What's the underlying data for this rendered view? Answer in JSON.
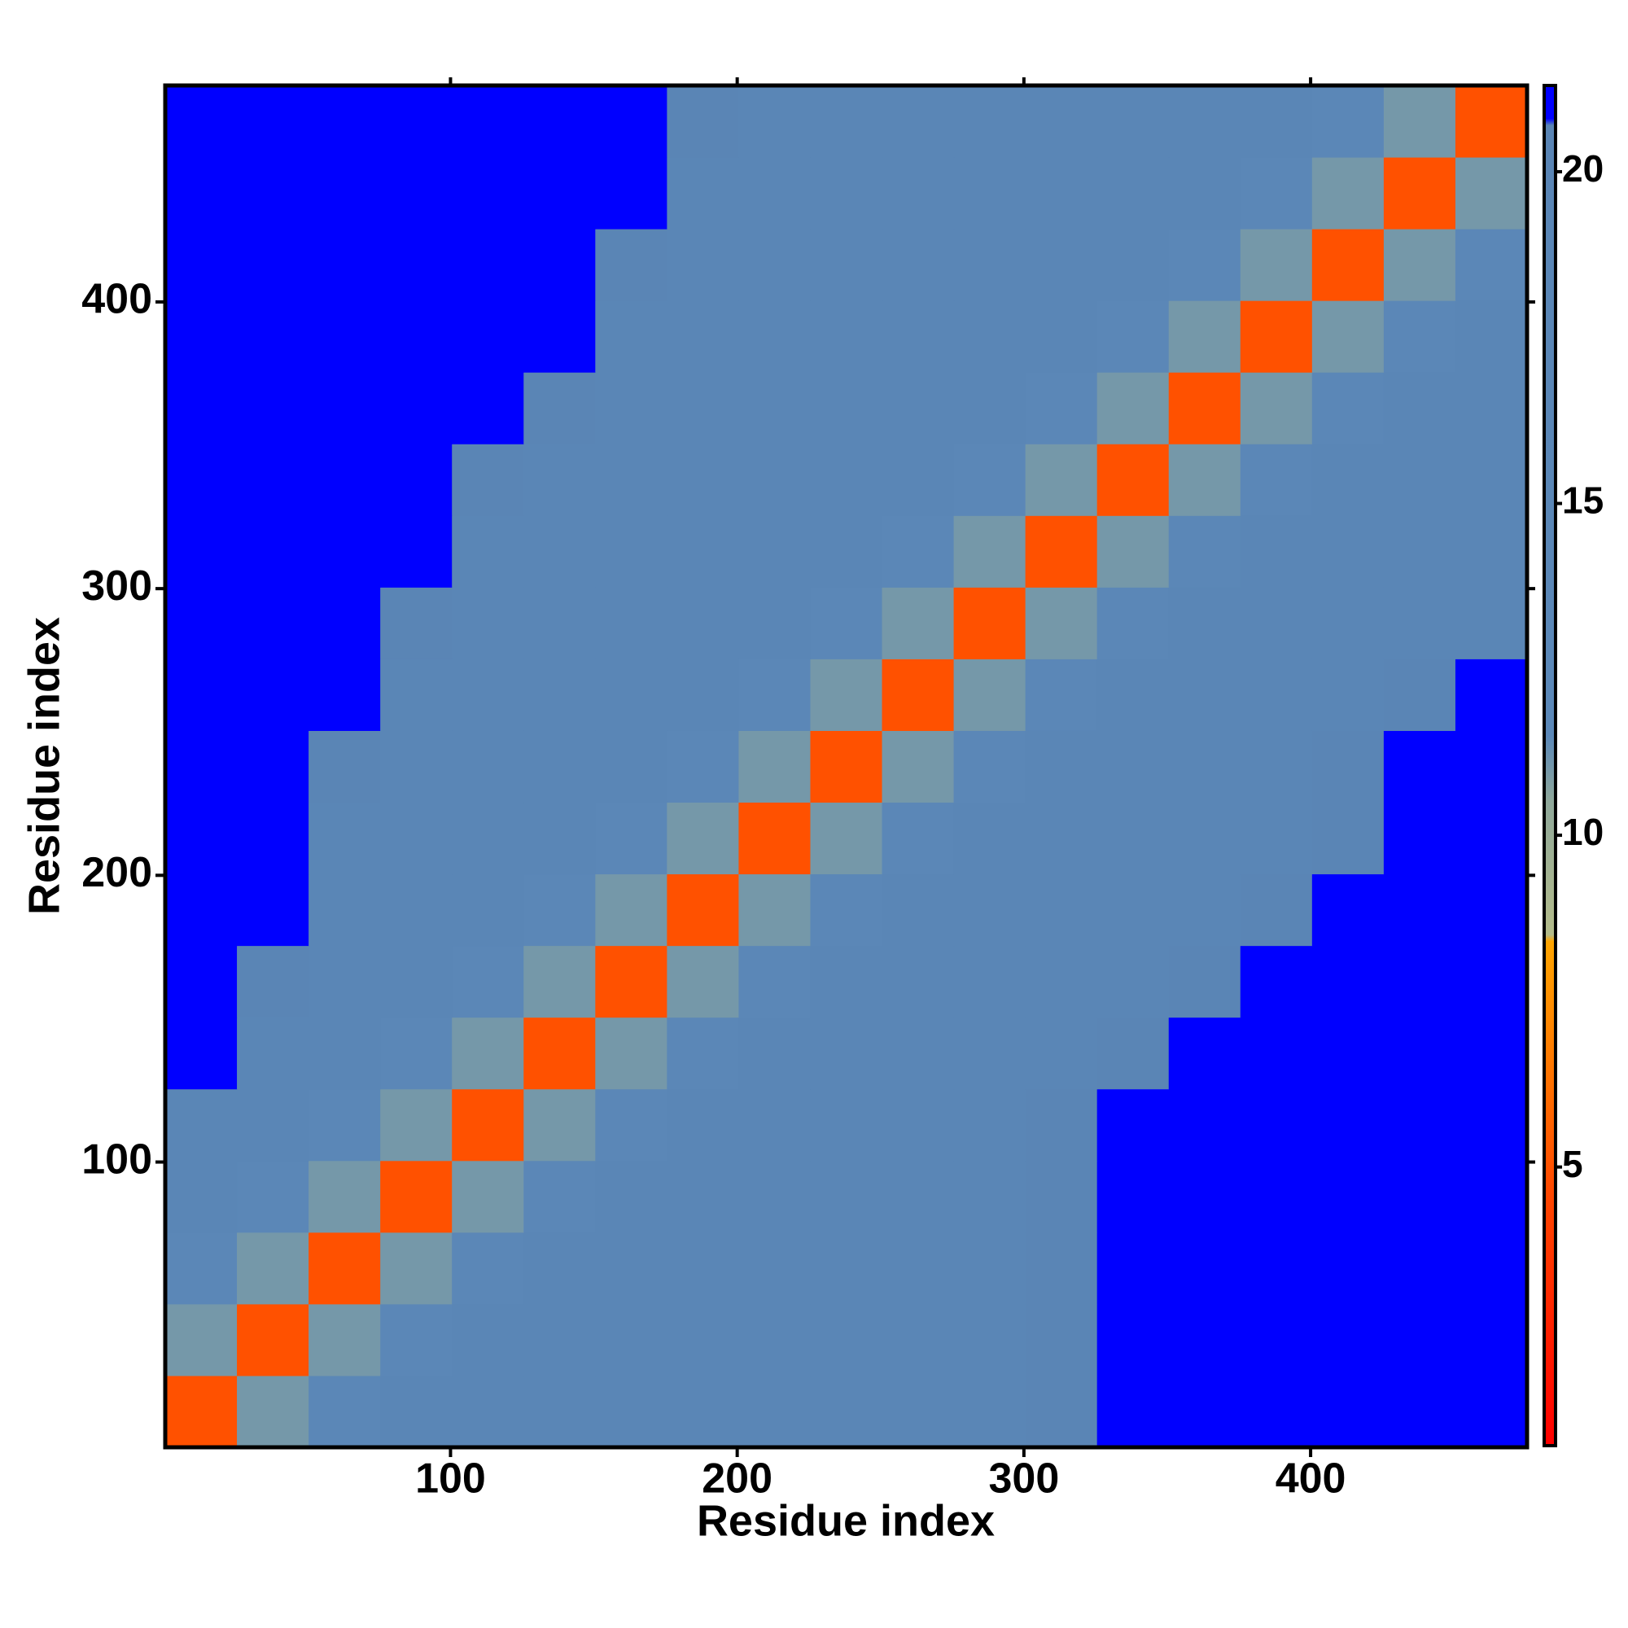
{
  "chart_data": {
    "type": "heatmap",
    "xlabel": "Residue index",
    "ylabel": "Residue index",
    "xlim": [
      0.5,
      475.5
    ],
    "ylim": [
      0.5,
      475.5
    ],
    "xticks": [
      100,
      200,
      300,
      400
    ],
    "yticks": [
      100,
      200,
      300,
      400
    ],
    "xbins": [
      0.5,
      25.5,
      50.5,
      75.5,
      100.5,
      125.5,
      150.5,
      175.5,
      200.5,
      225.5,
      250.5,
      275.5,
      300.5,
      325.5,
      350.5,
      375.5,
      400.5,
      425.5,
      450.5,
      475.5
    ],
    "ybins": [
      0.5,
      25.5,
      50.5,
      75.5,
      100.5,
      125.5,
      150.5,
      175.5,
      200.5,
      225.5,
      250.5,
      275.5,
      300.5,
      325.5,
      350.5,
      375.5,
      400.5,
      425.5,
      450.5,
      475.5
    ],
    "z": [
      [
        5,
        11,
        15,
        17,
        17,
        18,
        18,
        18,
        18,
        18,
        18,
        18,
        19.5,
        21,
        21,
        21,
        21,
        21,
        21
      ],
      [
        11,
        5,
        11,
        15,
        17,
        17,
        18,
        18,
        18,
        18,
        18,
        18,
        19.5,
        21,
        21,
        21,
        21,
        21,
        21
      ],
      [
        15,
        11,
        5,
        11,
        15,
        17,
        17,
        18,
        18,
        18,
        18,
        18,
        19.5,
        21,
        21,
        21,
        21,
        21,
        21
      ],
      [
        17,
        15,
        11,
        5,
        11,
        15,
        17,
        17,
        18,
        18,
        18,
        18,
        19.5,
        21,
        21,
        21,
        21,
        21,
        21
      ],
      [
        17,
        17,
        15,
        11,
        5,
        11,
        15,
        17,
        17,
        18,
        18,
        18,
        19.5,
        21,
        21,
        21,
        21,
        21,
        21
      ],
      [
        21,
        17,
        17,
        15,
        11,
        5,
        11,
        15,
        17,
        17,
        18,
        18,
        18,
        19.5,
        21,
        21,
        21,
        21,
        21
      ],
      [
        21,
        19.5,
        17,
        17,
        15,
        11,
        5,
        11,
        15,
        17,
        17,
        18,
        18,
        18,
        19.5,
        21,
        21,
        21,
        21
      ],
      [
        21,
        21,
        18,
        17,
        17,
        15,
        11,
        5,
        11,
        15,
        17,
        17,
        18,
        18,
        18,
        19.5,
        21,
        21,
        21
      ],
      [
        21,
        21,
        18,
        18,
        17,
        17,
        15,
        11,
        5,
        11,
        15,
        17,
        17,
        18,
        18,
        18,
        19.5,
        21,
        21
      ],
      [
        21,
        21,
        19.5,
        18,
        18,
        17,
        17,
        15,
        11,
        5,
        11,
        15,
        17,
        17,
        18,
        18,
        19.5,
        21,
        21
      ],
      [
        21,
        21,
        21,
        18,
        18,
        18,
        17,
        17,
        15,
        11,
        5,
        11,
        15,
        17,
        17,
        18,
        18,
        19.5,
        21
      ],
      [
        21,
        21,
        21,
        19.5,
        18,
        18,
        18,
        17,
        17,
        15,
        11,
        5,
        11,
        15,
        17,
        17,
        18,
        18,
        18
      ],
      [
        21,
        21,
        21,
        21,
        18,
        18,
        18,
        18,
        17,
        17,
        15,
        11,
        5,
        11,
        15,
        17,
        17,
        18,
        18
      ],
      [
        21,
        21,
        21,
        21,
        19.5,
        18,
        18,
        18,
        18,
        17,
        17,
        15,
        11,
        5,
        11,
        15,
        17,
        17,
        18
      ],
      [
        21,
        21,
        21,
        21,
        21,
        19.5,
        18,
        18,
        18,
        18,
        17,
        17,
        15,
        11,
        5,
        11,
        15,
        17,
        17
      ],
      [
        21,
        21,
        21,
        21,
        21,
        21,
        18,
        18,
        18,
        18,
        18,
        17,
        17,
        15,
        11,
        5,
        11,
        15,
        17
      ],
      [
        21,
        21,
        21,
        21,
        21,
        21,
        19.5,
        18,
        18,
        18,
        18,
        18,
        17,
        17,
        15,
        11,
        5,
        11,
        15
      ],
      [
        21,
        21,
        21,
        21,
        21,
        21,
        21,
        18,
        18,
        18,
        18,
        18,
        18,
        17,
        17,
        15,
        11,
        5,
        11
      ],
      [
        21,
        21,
        21,
        21,
        21,
        21,
        21,
        19.5,
        18,
        18,
        18,
        18,
        18,
        18,
        17,
        17,
        15,
        11,
        5
      ]
    ],
    "zlim": [
      0.8,
      21.3
    ],
    "zticks": [
      5,
      10,
      15,
      20
    ],
    "colorscale": [
      [
        0.8,
        "#ff0000"
      ],
      [
        4.5,
        "#ff4500"
      ],
      [
        8.4,
        "#ffa500"
      ],
      [
        8.5,
        "#b4bc8a"
      ],
      [
        10.5,
        "#8fa89a"
      ],
      [
        11.5,
        "#5b88b8"
      ],
      [
        20.7,
        "#5a85b5"
      ],
      [
        20.8,
        "#0000ff"
      ]
    ]
  }
}
